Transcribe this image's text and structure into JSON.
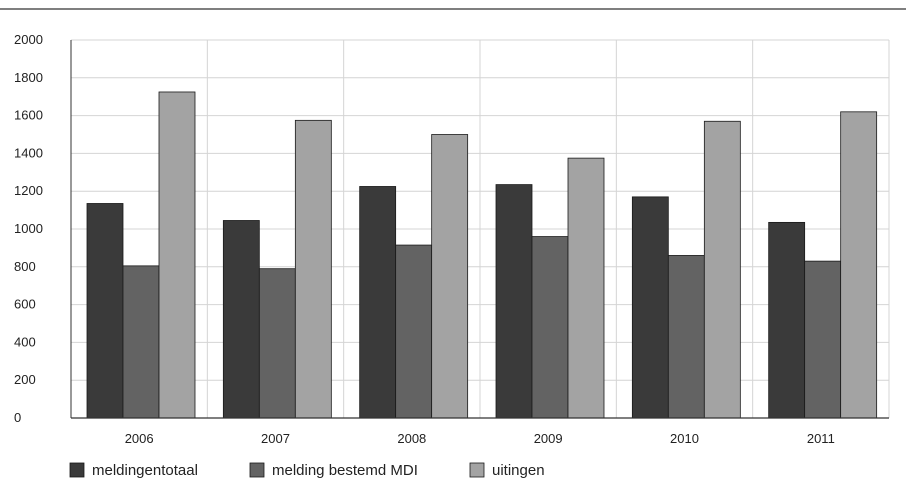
{
  "chart_data": {
    "type": "bar",
    "categories": [
      "2006",
      "2007",
      "2008",
      "2009",
      "2010",
      "2011"
    ],
    "series": [
      {
        "name": "meldingentotaal",
        "values": [
          1135,
          1045,
          1225,
          1235,
          1170,
          1035
        ],
        "color": "#3a3a3a"
      },
      {
        "name": "melding bestemd MDI",
        "values": [
          805,
          790,
          915,
          960,
          860,
          830
        ],
        "color": "#636363"
      },
      {
        "name": "uitingen",
        "values": [
          1725,
          1575,
          1500,
          1375,
          1570,
          1620
        ],
        "color": "#a3a3a3"
      }
    ],
    "title": "",
    "xlabel": "",
    "ylabel": "",
    "ylim": [
      0,
      2000
    ],
    "yticks": [
      "0",
      "200",
      "400",
      "600",
      "800",
      "1000",
      "1200",
      "1400",
      "1600",
      "1800",
      "2000"
    ],
    "grid": true,
    "legend_position": "bottom-left"
  }
}
